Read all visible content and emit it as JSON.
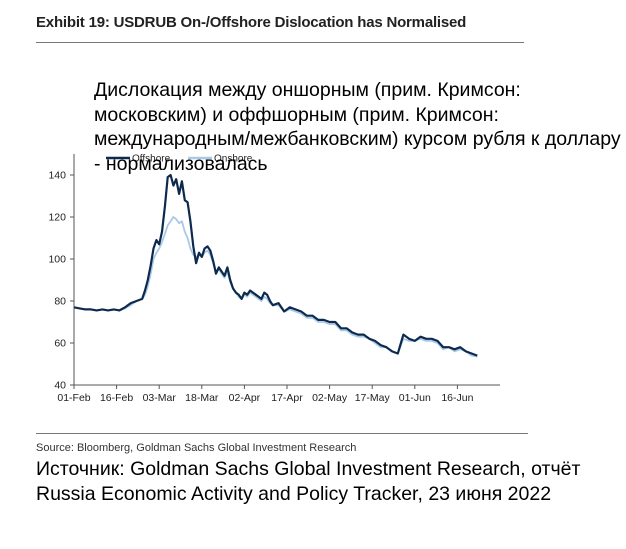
{
  "header": {
    "exhibit_title": "Exhibit 19: USDRUB On-/Offshore Dislocation has Normalised"
  },
  "overlay": {
    "caption": "Дислокация между оншорным (прим. Кримсон: московским) и оффшорным (прим. Кримсон: международным/межбанковским) курсом рубля к доллару - нормализовалась"
  },
  "footer": {
    "source_note": "Source: Bloomberg, Goldman Sachs Global Investment Research",
    "caption_ru": "Источник: Goldman Sachs Global Investment Research, отчёт Russia Economic Activity and Policy Tracker, 23 июня 2022"
  },
  "chart_data": {
    "type": "line",
    "title": "USDRUB On-/Offshore Dislocation has Normalised",
    "xlabel": "",
    "ylabel": "",
    "ylim": [
      40,
      150
    ],
    "yticks": [
      40,
      60,
      80,
      100,
      120,
      140
    ],
    "xticks": [
      "01-Feb",
      "16-Feb",
      "03-Mar",
      "18-Mar",
      "02-Apr",
      "17-Apr",
      "02-May",
      "17-May",
      "01-Jun",
      "16-Jun"
    ],
    "xtick_days": [
      0,
      15,
      30,
      45,
      60,
      75,
      90,
      105,
      120,
      135
    ],
    "legend_position": "top-left",
    "grid": false,
    "series": [
      {
        "name": "Offshore",
        "color": "#0d2a4e",
        "x": [
          0,
          2,
          4,
          6,
          8,
          10,
          12,
          14,
          16,
          18,
          20,
          22,
          24,
          25,
          26,
          27,
          28,
          29,
          30,
          31,
          32,
          33,
          34,
          35,
          36,
          37,
          38,
          39,
          40,
          41,
          42,
          43,
          44,
          45,
          46,
          47,
          48,
          49,
          50,
          51,
          52,
          53,
          54,
          55,
          56,
          57,
          58,
          59,
          60,
          61,
          62,
          63,
          64,
          65,
          66,
          67,
          68,
          69,
          70,
          72,
          74,
          76,
          78,
          80,
          82,
          84,
          86,
          88,
          90,
          92,
          94,
          96,
          98,
          100,
          102,
          104,
          106,
          108,
          110,
          112,
          114,
          116,
          118,
          120,
          122,
          124,
          126,
          128,
          130,
          132,
          134,
          136,
          138,
          140,
          142
        ],
        "y": [
          77,
          76.5,
          76,
          76,
          75.5,
          76,
          75.5,
          76,
          75.5,
          77,
          79,
          80,
          81,
          85,
          90,
          97,
          105,
          109,
          107,
          113,
          125,
          139,
          140,
          135,
          138,
          131,
          137,
          128,
          127,
          118,
          106,
          98,
          103,
          101,
          105,
          106,
          104,
          99,
          93,
          96,
          94,
          92,
          96,
          90,
          86,
          84,
          83,
          81,
          84,
          83,
          85,
          84,
          83,
          82,
          81,
          84,
          83,
          80,
          78,
          79,
          75,
          77,
          76,
          75,
          73,
          73,
          71,
          71,
          70,
          70,
          67,
          67,
          65,
          64,
          64,
          62,
          61,
          59,
          58,
          56,
          55,
          64,
          62,
          61,
          63,
          62,
          62,
          61,
          58,
          58,
          57,
          58,
          56,
          55,
          54
        ]
      },
      {
        "name": "Onshore",
        "color": "#a9c9e6",
        "x": [
          0,
          2,
          4,
          6,
          8,
          10,
          12,
          14,
          16,
          18,
          20,
          22,
          24,
          25,
          26,
          27,
          28,
          29,
          30,
          31,
          32,
          33,
          34,
          35,
          36,
          37,
          38,
          39,
          40,
          41,
          42,
          43,
          44,
          45,
          46,
          47,
          48,
          49,
          50,
          51,
          52,
          53,
          54,
          55,
          56,
          57,
          58,
          59,
          60,
          61,
          62,
          63,
          64,
          65,
          66,
          67,
          68,
          69,
          70,
          72,
          74,
          76,
          78,
          80,
          82,
          84,
          86,
          88,
          90,
          92,
          94,
          96,
          98,
          100,
          102,
          104,
          106,
          108,
          110,
          112,
          114,
          116,
          118,
          120,
          122,
          124,
          126,
          128,
          130,
          132,
          134,
          136,
          138,
          140,
          142
        ],
        "y": [
          77,
          76.5,
          76,
          76,
          75.5,
          76,
          75.5,
          76,
          75.5,
          76.5,
          78,
          80,
          81,
          83,
          87,
          93,
          100,
          103,
          105,
          108,
          112,
          116,
          118,
          120,
          119,
          117,
          118,
          113,
          110,
          105,
          102,
          101,
          102,
          101,
          103,
          104,
          102,
          98,
          94,
          95,
          93,
          91,
          94,
          89,
          86,
          84,
          82,
          81,
          83,
          82,
          84,
          83,
          82,
          81,
          80,
          82,
          81,
          79,
          78,
          78,
          75,
          76,
          75,
          74,
          72,
          72,
          70,
          70,
          69,
          69,
          66,
          66,
          64,
          63,
          63,
          62,
          60,
          58,
          58,
          56,
          55,
          62,
          61,
          61,
          62,
          61,
          61,
          60,
          57,
          58,
          56,
          57,
          56,
          54,
          53.5
        ]
      }
    ]
  }
}
